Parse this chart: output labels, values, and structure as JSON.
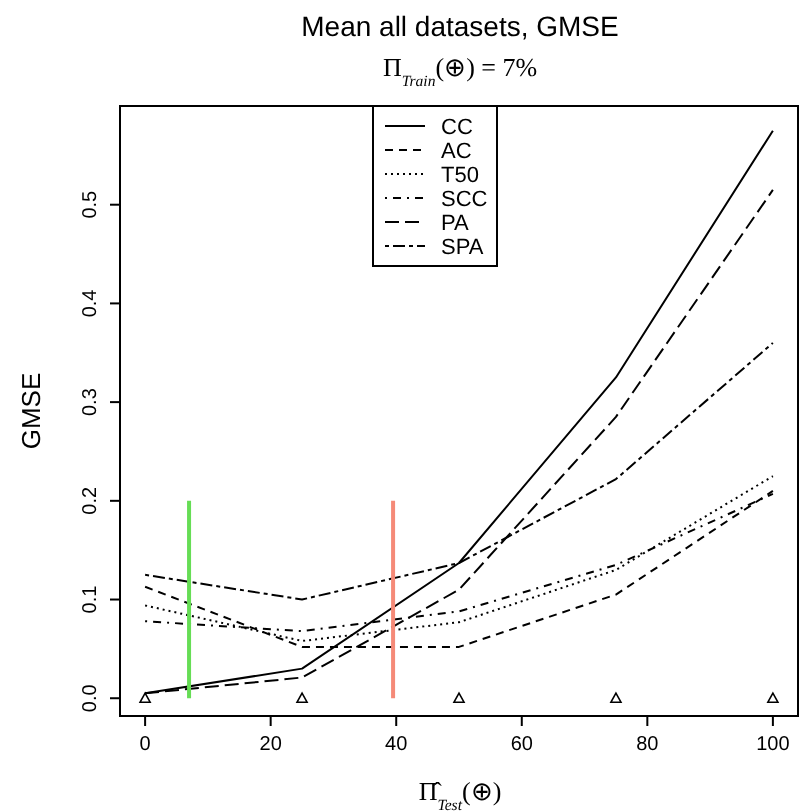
{
  "chart_data": {
    "type": "line",
    "title": "Mean all datasets, GMSE",
    "subtitle": "Π$_{Train}$(⊕) = 7%",
    "xlabel": "Π̂$_{Test}$(⊕)",
    "ylabel": "GMSE",
    "x": [
      0,
      25,
      50,
      75,
      100
    ],
    "series": [
      {
        "name": "CC",
        "color": "#000000",
        "line_style": "solid",
        "values": [
          0.005,
          0.03,
          0.137,
          0.325,
          0.575
        ]
      },
      {
        "name": "AC",
        "color": "#000000",
        "line_style": "dashed",
        "values": [
          0.113,
          0.052,
          0.052,
          0.105,
          0.21
        ]
      },
      {
        "name": "T50",
        "color": "#000000",
        "line_style": "dotted",
        "values": [
          0.094,
          0.058,
          0.077,
          0.13,
          0.225
        ]
      },
      {
        "name": "SCC",
        "color": "#000000",
        "line_style": "dashdot",
        "values": [
          0.078,
          0.068,
          0.088,
          0.135,
          0.207
        ]
      },
      {
        "name": "PA",
        "color": "#000000",
        "line_style": "longdash",
        "values": [
          0.005,
          0.021,
          0.11,
          0.285,
          0.515
        ]
      },
      {
        "name": "SPA",
        "color": "#000000",
        "line_style": "twodash",
        "values": [
          0.125,
          0.1,
          0.137,
          0.222,
          0.36
        ]
      },
      {
        "type": "line",
        "color": "#66dd55",
        "line_style": "solid",
        "x": [
          7,
          7
        ],
        "values": [
          0,
          0.2
        ]
      },
      {
        "type": "line",
        "color": "#f58a78",
        "line_style": "solid",
        "x": [
          39.5,
          39.5
        ],
        "values": [
          0,
          0.2
        ]
      },
      {
        "type": "scatter",
        "color": "#000000",
        "marker": "triangle",
        "x": [
          0,
          25,
          50,
          75,
          100
        ],
        "values": [
          0,
          0,
          0,
          0,
          0
        ]
      }
    ],
    "xlim": [
      -4,
      104
    ],
    "ylim": [
      -0.018,
      0.6
    ],
    "xticks": [
      0,
      20,
      40,
      60,
      80,
      100
    ],
    "yticks": [
      {
        "value": 0,
        "label": "0.0"
      },
      {
        "value": 0.1,
        "label": "0.1"
      },
      {
        "value": 0.2,
        "label": "0.2"
      },
      {
        "value": 0.3,
        "label": "0.3"
      },
      {
        "value": 0.4,
        "label": "0.4"
      },
      {
        "value": 0.5,
        "label": "0.5"
      }
    ],
    "grid": false,
    "legend": "top"
  }
}
